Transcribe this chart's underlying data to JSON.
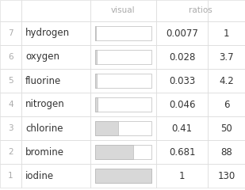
{
  "rows": [
    {
      "num": "7",
      "element": "hydrogen",
      "visual_ratio": 0.0077,
      "value": "0.0077",
      "ratio": "1"
    },
    {
      "num": "6",
      "element": "oxygen",
      "visual_ratio": 0.028,
      "value": "0.028",
      "ratio": "3.7"
    },
    {
      "num": "5",
      "element": "fluorine",
      "visual_ratio": 0.033,
      "value": "0.033",
      "ratio": "4.2"
    },
    {
      "num": "4",
      "element": "nitrogen",
      "visual_ratio": 0.046,
      "value": "0.046",
      "ratio": "6"
    },
    {
      "num": "3",
      "element": "chlorine",
      "visual_ratio": 0.41,
      "value": "0.41",
      "ratio": "50"
    },
    {
      "num": "2",
      "element": "bromine",
      "visual_ratio": 0.681,
      "value": "0.681",
      "ratio": "88"
    },
    {
      "num": "1",
      "element": "iodine",
      "visual_ratio": 1.0,
      "value": "1",
      "ratio": "130"
    }
  ],
  "bg_color": "#ffffff",
  "header_text_color": "#aaaaaa",
  "num_text_color": "#aaaaaa",
  "element_text_color": "#333333",
  "value_text_color": "#333333",
  "bar_fill_color": "#d8d8d8",
  "bar_edge_color": "#bbbbbb",
  "grid_color": "#dddddd",
  "font_size_header": 7.5,
  "font_size_num": 7.5,
  "font_size_element": 8.5,
  "font_size_value": 8.5
}
